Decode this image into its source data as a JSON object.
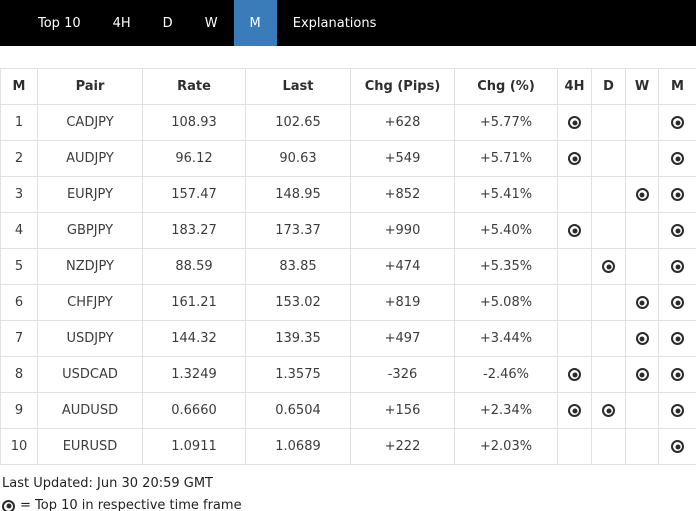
{
  "nav": {
    "tabs": [
      {
        "label": "Top 10",
        "active": false
      },
      {
        "label": "4H",
        "active": false
      },
      {
        "label": "D",
        "active": false
      },
      {
        "label": "W",
        "active": false
      },
      {
        "label": "M",
        "active": true
      },
      {
        "label": "Explanations",
        "active": false
      }
    ],
    "active_tab_color": "#3a7cba",
    "bar_color": "#000000"
  },
  "table": {
    "headers": [
      "M",
      "Pair",
      "Rate",
      "Last",
      "Chg (Pips)",
      "Chg (%)",
      "4H",
      "D",
      "W",
      "M"
    ],
    "rows": [
      {
        "rank": "1",
        "pair": "CADJPY",
        "rate": "108.93",
        "last": "102.65",
        "chg_pips": "+628",
        "chg_pct": "+5.77%",
        "tf_4h": true,
        "tf_d": false,
        "tf_w": false,
        "tf_m": true
      },
      {
        "rank": "2",
        "pair": "AUDJPY",
        "rate": "96.12",
        "last": "90.63",
        "chg_pips": "+549",
        "chg_pct": "+5.71%",
        "tf_4h": true,
        "tf_d": false,
        "tf_w": false,
        "tf_m": true
      },
      {
        "rank": "3",
        "pair": "EURJPY",
        "rate": "157.47",
        "last": "148.95",
        "chg_pips": "+852",
        "chg_pct": "+5.41%",
        "tf_4h": false,
        "tf_d": false,
        "tf_w": true,
        "tf_m": true
      },
      {
        "rank": "4",
        "pair": "GBPJPY",
        "rate": "183.27",
        "last": "173.37",
        "chg_pips": "+990",
        "chg_pct": "+5.40%",
        "tf_4h": true,
        "tf_d": false,
        "tf_w": false,
        "tf_m": true
      },
      {
        "rank": "5",
        "pair": "NZDJPY",
        "rate": "88.59",
        "last": "83.85",
        "chg_pips": "+474",
        "chg_pct": "+5.35%",
        "tf_4h": false,
        "tf_d": true,
        "tf_w": false,
        "tf_m": true
      },
      {
        "rank": "6",
        "pair": "CHFJPY",
        "rate": "161.21",
        "last": "153.02",
        "chg_pips": "+819",
        "chg_pct": "+5.08%",
        "tf_4h": false,
        "tf_d": false,
        "tf_w": true,
        "tf_m": true
      },
      {
        "rank": "7",
        "pair": "USDJPY",
        "rate": "144.32",
        "last": "139.35",
        "chg_pips": "+497",
        "chg_pct": "+3.44%",
        "tf_4h": false,
        "tf_d": false,
        "tf_w": true,
        "tf_m": true
      },
      {
        "rank": "8",
        "pair": "USDCAD",
        "rate": "1.3249",
        "last": "1.3575",
        "chg_pips": "-326",
        "chg_pct": "-2.46%",
        "tf_4h": true,
        "tf_d": false,
        "tf_w": true,
        "tf_m": true
      },
      {
        "rank": "9",
        "pair": "AUDUSD",
        "rate": "0.6660",
        "last": "0.6504",
        "chg_pips": "+156",
        "chg_pct": "+2.34%",
        "tf_4h": true,
        "tf_d": true,
        "tf_w": false,
        "tf_m": true
      },
      {
        "rank": "10",
        "pair": "EURUSD",
        "rate": "1.0911",
        "last": "1.0689",
        "chg_pips": "+222",
        "chg_pct": "+2.03%",
        "tf_4h": false,
        "tf_d": false,
        "tf_w": false,
        "tf_m": true
      }
    ]
  },
  "footer": {
    "last_updated": "Last Updated: Jun 30 20:59 GMT",
    "legend_icon": "bullseye-icon",
    "legend_text": "= Top 10 in respective time frame"
  }
}
